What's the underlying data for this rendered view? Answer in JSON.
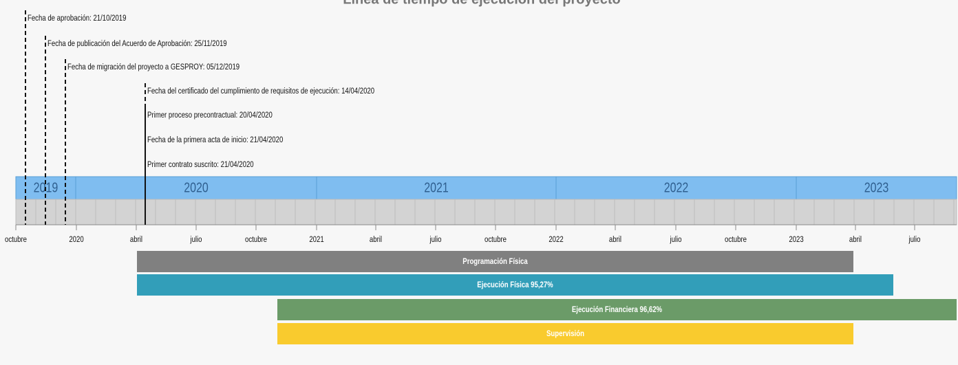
{
  "title": "Línea de tiempo de ejecución del proyecto",
  "events": [
    "Fecha de aprobación: 21/10/2019",
    "Fecha de publicación del Acuerdo de Aprobación: 25/11/2019",
    "Fecha de migración del proyecto a GESPROY: 05/12/2019",
    "Fecha del certificado del cumplimiento de requisitos de ejecución: 14/04/2020",
    "Primer proceso precontractual: 20/04/2020",
    "Fecha de la primera acta de inicio: 21/04/2020",
    "Primer contrato suscrito: 21/04/2020"
  ],
  "years": [
    "2019",
    "2020",
    "2021",
    "2022",
    "2023"
  ],
  "months": [
    "octubre",
    "2020",
    "abril",
    "julio",
    "octubre",
    "2021",
    "abril",
    "julio",
    "octubre",
    "2022",
    "abril",
    "julio",
    "octubre",
    "2023",
    "abril",
    "julio"
  ],
  "bars": [
    "Programación Física",
    "Ejecución Física 95,27%",
    "Ejecución Financiera 96,62%",
    "Supervisión"
  ]
}
